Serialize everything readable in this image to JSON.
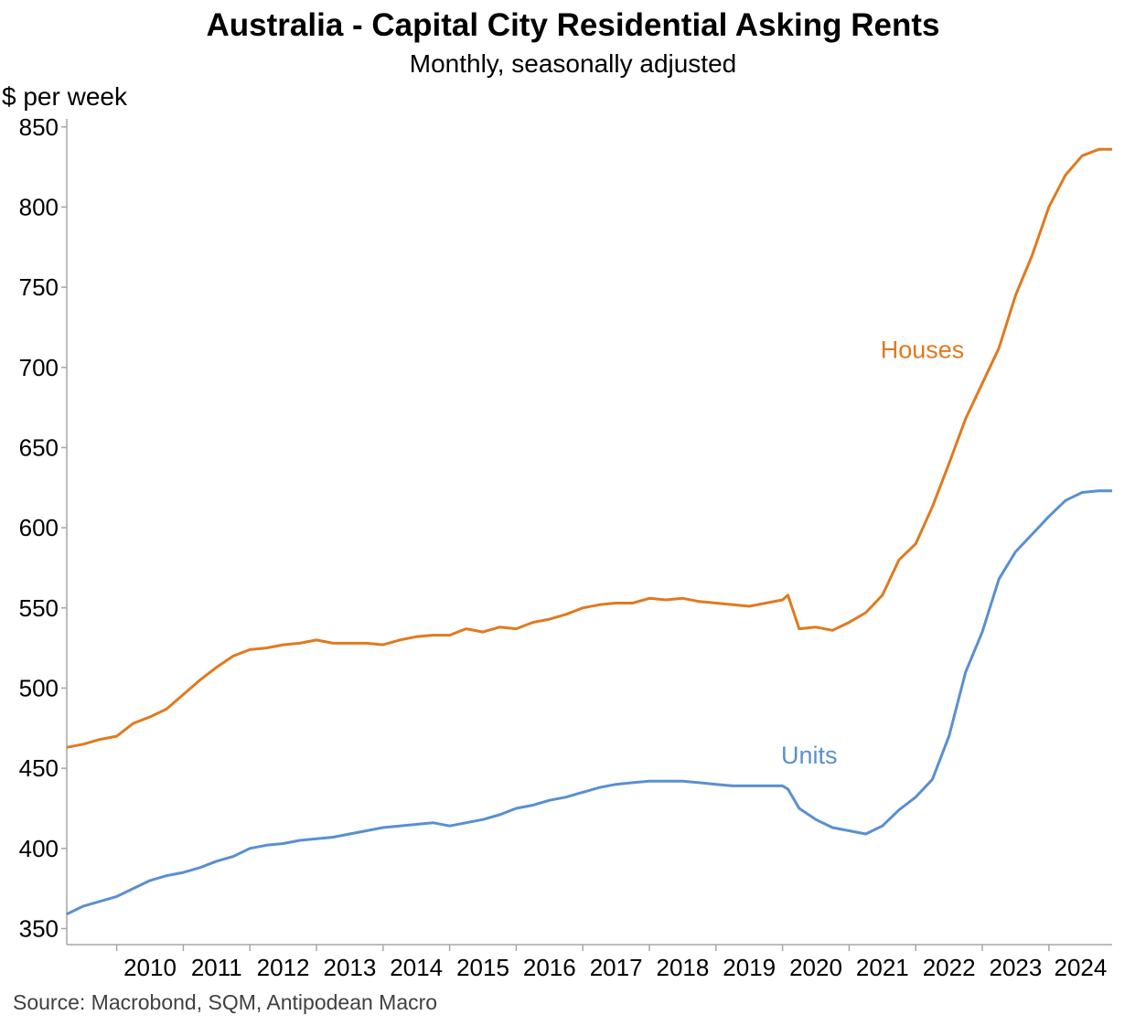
{
  "chart_data": {
    "type": "line",
    "title": "Australia - Capital City Residential Asking Rents",
    "subtitle": "Monthly, seasonally adjusted",
    "ylabel": "$ per week",
    "xlabel": "",
    "source": "Source: Macrobond, SQM, Antipodean Macro",
    "ylim": [
      340,
      855
    ],
    "yticks": [
      350,
      400,
      450,
      500,
      550,
      600,
      650,
      700,
      750,
      800,
      850
    ],
    "xlim": [
      2009.25,
      2024.95
    ],
    "x_tick_labels": [
      "2010",
      "2011",
      "2012",
      "2013",
      "2014",
      "2015",
      "2016",
      "2017",
      "2018",
      "2019",
      "2020",
      "2021",
      "2022",
      "2023",
      "2024"
    ],
    "grid": false,
    "legend": "inline labels",
    "series": [
      {
        "name": "Houses",
        "color": "#e07a1f",
        "points": [
          [
            2009.25,
            463
          ],
          [
            2009.5,
            465
          ],
          [
            2009.75,
            468
          ],
          [
            2010.0,
            470
          ],
          [
            2010.25,
            478
          ],
          [
            2010.5,
            482
          ],
          [
            2010.75,
            487
          ],
          [
            2011.0,
            496
          ],
          [
            2011.25,
            505
          ],
          [
            2011.5,
            513
          ],
          [
            2011.75,
            520
          ],
          [
            2012.0,
            524
          ],
          [
            2012.25,
            525
          ],
          [
            2012.5,
            527
          ],
          [
            2012.75,
            528
          ],
          [
            2013.0,
            530
          ],
          [
            2013.25,
            528
          ],
          [
            2013.5,
            528
          ],
          [
            2013.75,
            528
          ],
          [
            2014.0,
            527
          ],
          [
            2014.25,
            530
          ],
          [
            2014.5,
            532
          ],
          [
            2014.75,
            533
          ],
          [
            2015.0,
            533
          ],
          [
            2015.25,
            537
          ],
          [
            2015.5,
            535
          ],
          [
            2015.75,
            538
          ],
          [
            2016.0,
            537
          ],
          [
            2016.25,
            541
          ],
          [
            2016.5,
            543
          ],
          [
            2016.75,
            546
          ],
          [
            2017.0,
            550
          ],
          [
            2017.25,
            552
          ],
          [
            2017.5,
            553
          ],
          [
            2017.75,
            553
          ],
          [
            2018.0,
            556
          ],
          [
            2018.25,
            555
          ],
          [
            2018.5,
            556
          ],
          [
            2018.75,
            554
          ],
          [
            2019.0,
            553
          ],
          [
            2019.25,
            552
          ],
          [
            2019.5,
            551
          ],
          [
            2019.75,
            553
          ],
          [
            2020.0,
            555
          ],
          [
            2020.08,
            558
          ],
          [
            2020.25,
            537
          ],
          [
            2020.5,
            538
          ],
          [
            2020.75,
            536
          ],
          [
            2021.0,
            541
          ],
          [
            2021.25,
            547
          ],
          [
            2021.5,
            558
          ],
          [
            2021.75,
            580
          ],
          [
            2022.0,
            590
          ],
          [
            2022.25,
            613
          ],
          [
            2022.5,
            640
          ],
          [
            2022.75,
            668
          ],
          [
            2023.0,
            690
          ],
          [
            2023.25,
            712
          ],
          [
            2023.5,
            745
          ],
          [
            2023.75,
            770
          ],
          [
            2024.0,
            800
          ],
          [
            2024.25,
            820
          ],
          [
            2024.5,
            832
          ],
          [
            2024.75,
            836
          ],
          [
            2024.95,
            836
          ]
        ]
      },
      {
        "name": "Units",
        "color": "#5a8fd0",
        "points": [
          [
            2009.25,
            359
          ],
          [
            2009.5,
            364
          ],
          [
            2009.75,
            367
          ],
          [
            2010.0,
            370
          ],
          [
            2010.25,
            375
          ],
          [
            2010.5,
            380
          ],
          [
            2010.75,
            383
          ],
          [
            2011.0,
            385
          ],
          [
            2011.25,
            388
          ],
          [
            2011.5,
            392
          ],
          [
            2011.75,
            395
          ],
          [
            2012.0,
            400
          ],
          [
            2012.25,
            402
          ],
          [
            2012.5,
            403
          ],
          [
            2012.75,
            405
          ],
          [
            2013.0,
            406
          ],
          [
            2013.25,
            407
          ],
          [
            2013.5,
            409
          ],
          [
            2013.75,
            411
          ],
          [
            2014.0,
            413
          ],
          [
            2014.25,
            414
          ],
          [
            2014.5,
            415
          ],
          [
            2014.75,
            416
          ],
          [
            2015.0,
            414
          ],
          [
            2015.25,
            416
          ],
          [
            2015.5,
            418
          ],
          [
            2015.75,
            421
          ],
          [
            2016.0,
            425
          ],
          [
            2016.25,
            427
          ],
          [
            2016.5,
            430
          ],
          [
            2016.75,
            432
          ],
          [
            2017.0,
            435
          ],
          [
            2017.25,
            438
          ],
          [
            2017.5,
            440
          ],
          [
            2017.75,
            441
          ],
          [
            2018.0,
            442
          ],
          [
            2018.25,
            442
          ],
          [
            2018.5,
            442
          ],
          [
            2018.75,
            441
          ],
          [
            2019.0,
            440
          ],
          [
            2019.25,
            439
          ],
          [
            2019.5,
            439
          ],
          [
            2019.75,
            439
          ],
          [
            2020.0,
            439
          ],
          [
            2020.08,
            437
          ],
          [
            2020.25,
            425
          ],
          [
            2020.5,
            418
          ],
          [
            2020.75,
            413
          ],
          [
            2021.0,
            411
          ],
          [
            2021.25,
            409
          ],
          [
            2021.5,
            414
          ],
          [
            2021.75,
            424
          ],
          [
            2022.0,
            432
          ],
          [
            2022.25,
            443
          ],
          [
            2022.5,
            470
          ],
          [
            2022.75,
            510
          ],
          [
            2023.0,
            535
          ],
          [
            2023.25,
            568
          ],
          [
            2023.5,
            585
          ],
          [
            2023.75,
            596
          ],
          [
            2024.0,
            607
          ],
          [
            2024.25,
            617
          ],
          [
            2024.5,
            622
          ],
          [
            2024.75,
            623
          ],
          [
            2024.95,
            623
          ]
        ]
      }
    ]
  }
}
